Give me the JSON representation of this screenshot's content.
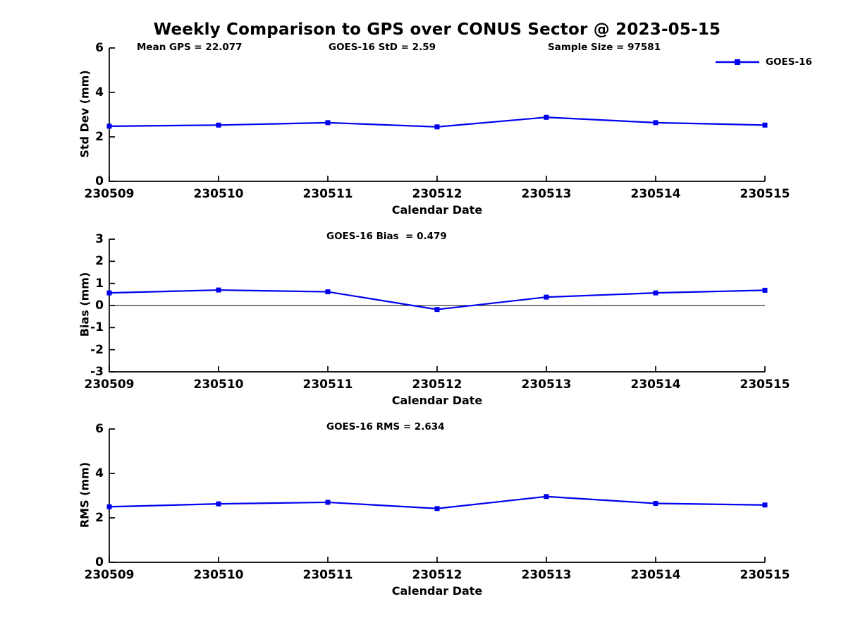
{
  "figure": {
    "title": "Weekly Comparison to GPS over CONUS Sector @ 2023-05-15",
    "legend": {
      "label": "GOES-16"
    },
    "colors": {
      "series": "#0000EE",
      "axis": "#000000",
      "zero_line": "#000000",
      "background": "#FFFFFF",
      "text": "#000000"
    }
  },
  "chart_data": [
    {
      "type": "line",
      "name": "std-dev",
      "annotations": [
        "Mean GPS = 22.077",
        "GOES-16 StD = 2.59",
        "Sample Size = 97581"
      ],
      "categories": [
        "230509",
        "230510",
        "230511",
        "230512",
        "230513",
        "230514",
        "230515"
      ],
      "series": [
        {
          "name": "GOES-16",
          "values": [
            2.48,
            2.53,
            2.64,
            2.45,
            2.88,
            2.64,
            2.53
          ]
        }
      ],
      "xlabel": "Calendar Date",
      "ylabel": "Std Dev (mm)",
      "ylim": [
        0,
        6
      ],
      "yticks": [
        0,
        2,
        4,
        6
      ],
      "grid": false,
      "zero_line": false,
      "legend_position": "top-right"
    },
    {
      "type": "line",
      "name": "bias",
      "annotations": [
        "GOES-16 Bias  = 0.479"
      ],
      "categories": [
        "230509",
        "230510",
        "230511",
        "230512",
        "230513",
        "230514",
        "230515"
      ],
      "series": [
        {
          "name": "GOES-16",
          "values": [
            0.57,
            0.7,
            0.62,
            -0.18,
            0.38,
            0.57,
            0.69
          ]
        }
      ],
      "xlabel": "Calendar Date",
      "ylabel": "Bias (mm)",
      "ylim": [
        -3,
        3
      ],
      "yticks": [
        -3,
        -2,
        -1,
        0,
        1,
        2,
        3
      ],
      "grid": false,
      "zero_line": true,
      "legend_position": "none"
    },
    {
      "type": "line",
      "name": "rms",
      "annotations": [
        "GOES-16 RMS = 2.634"
      ],
      "categories": [
        "230509",
        "230510",
        "230511",
        "230512",
        "230513",
        "230514",
        "230515"
      ],
      "series": [
        {
          "name": "GOES-16",
          "values": [
            2.5,
            2.63,
            2.7,
            2.42,
            2.96,
            2.65,
            2.58
          ]
        }
      ],
      "xlabel": "Calendar Date",
      "ylabel": "RMS (mm)",
      "ylim": [
        0,
        6
      ],
      "yticks": [
        0,
        2,
        4,
        6
      ],
      "grid": false,
      "zero_line": false,
      "legend_position": "none"
    }
  ]
}
